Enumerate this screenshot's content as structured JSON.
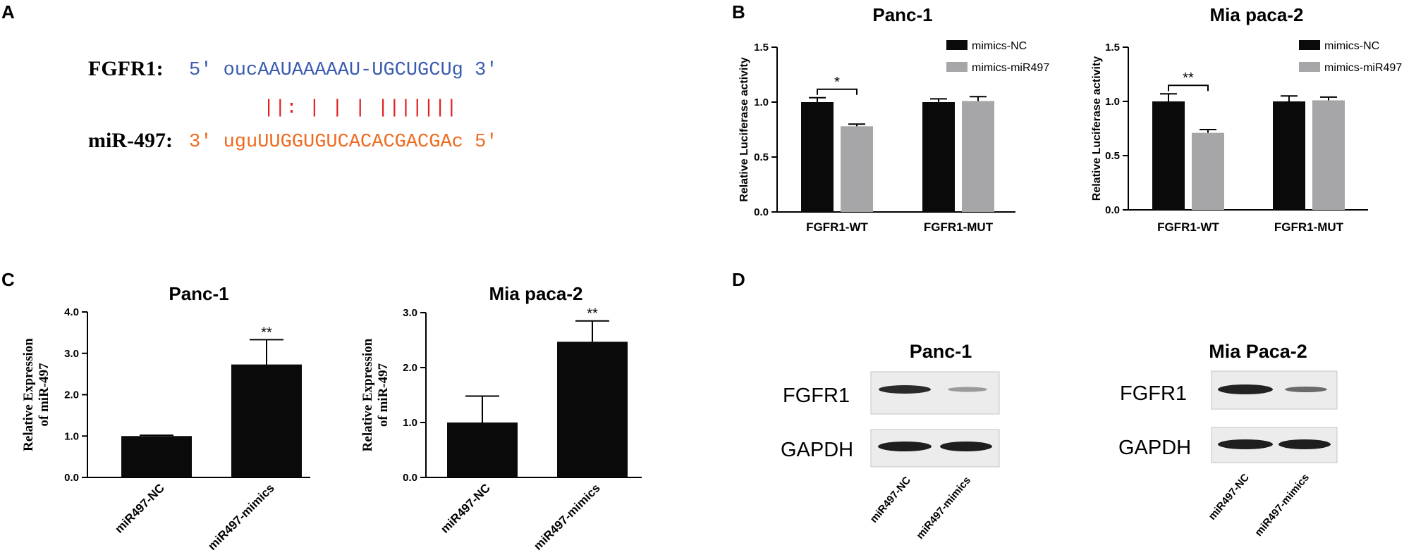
{
  "panels": {
    "A": {
      "letter": "A",
      "target": {
        "label": "FGFR1:",
        "sequence": "5' oucAAUAAAAAU-UGCUGCUg 3'",
        "color": "#3a5cb0"
      },
      "pairing": "||: | | | |||||||",
      "pairing_color": "#e02020",
      "mirna": {
        "label": "miR-497:",
        "sequence": "3' uguUUGGUGUCACACGACGAc 5'",
        "color": "#f06a1e"
      }
    },
    "B": {
      "letter": "B"
    },
    "C": {
      "letter": "C"
    },
    "D": {
      "letter": "D",
      "blots": [
        {
          "title": "Panc-1",
          "rows": [
            "FGFR1",
            "GAPDH"
          ],
          "lanes": [
            "miR497-NC",
            "miR497-mimics"
          ]
        },
        {
          "title": "Mia Paca-2",
          "rows": [
            "FGFR1",
            "GAPDH"
          ],
          "lanes": [
            "miR497-NC",
            "miR497-mimics"
          ]
        }
      ]
    }
  },
  "colors": {
    "black": "#0a0a0a",
    "gray": "#a6a6a8"
  },
  "chart_data": [
    {
      "id": "B-panc1",
      "type": "bar",
      "title": "Panc-1",
      "ylabel": "Relative Luciferase activity",
      "ylim": [
        0,
        1.5
      ],
      "yticks": [
        "0.0",
        "0.5",
        "1.0",
        "1.5"
      ],
      "categories": [
        "FGFR1-WT",
        "FGFR1-MUT"
      ],
      "legend": "top-right",
      "series": [
        {
          "name": "mimics-NC",
          "color": "#0a0a0a",
          "values": [
            1.0,
            1.0
          ],
          "errors": [
            0.04,
            0.03
          ]
        },
        {
          "name": "mimics-miR497",
          "color": "#a6a6a8",
          "values": [
            0.78,
            1.01
          ],
          "errors": [
            0.02,
            0.04
          ]
        }
      ],
      "significance": [
        {
          "category": "FGFR1-WT",
          "label": "*"
        }
      ]
    },
    {
      "id": "B-mia",
      "type": "bar",
      "title": "Mia paca-2",
      "ylabel": "Relative Luciferase activity",
      "ylim": [
        0,
        1.5
      ],
      "yticks": [
        "0.0",
        "0.5",
        "1.0",
        "1.5"
      ],
      "categories": [
        "FGFR1-WT",
        "FGFR1-MUT"
      ],
      "legend": "top-right",
      "series": [
        {
          "name": "mimics-NC",
          "color": "#0a0a0a",
          "values": [
            1.0,
            1.0
          ],
          "errors": [
            0.07,
            0.05
          ]
        },
        {
          "name": "mimics-miR497",
          "color": "#a6a6a8",
          "values": [
            0.71,
            1.01
          ],
          "errors": [
            0.03,
            0.03
          ]
        }
      ],
      "significance": [
        {
          "category": "FGFR1-WT",
          "label": "**"
        }
      ]
    },
    {
      "id": "C-panc1",
      "type": "bar",
      "title": "Panc-1",
      "ylabel_lines": [
        "Relative Expression",
        "of miR-497"
      ],
      "ylim": [
        0,
        4.0
      ],
      "yticks": [
        "0.0",
        "1.0",
        "2.0",
        "3.0",
        "4.0"
      ],
      "categories": [
        "miR497-NC",
        "miR497-mimics"
      ],
      "values": [
        1.0,
        2.73
      ],
      "errors": [
        0.02,
        0.6
      ],
      "significance": [
        {
          "category": "miR497-mimics",
          "label": "**"
        }
      ]
    },
    {
      "id": "C-mia",
      "type": "bar",
      "title": "Mia paca-2",
      "ylabel_lines": [
        "Relative Expression",
        "of miR-497"
      ],
      "ylim": [
        0,
        3.0
      ],
      "yticks": [
        "0.0",
        "1.0",
        "2.0",
        "3.0"
      ],
      "categories": [
        "miR497-NC",
        "miR497-mimics"
      ],
      "values": [
        1.0,
        2.47
      ],
      "errors": [
        0.48,
        0.38
      ],
      "significance": [
        {
          "category": "miR497-mimics",
          "label": "**"
        }
      ]
    }
  ]
}
